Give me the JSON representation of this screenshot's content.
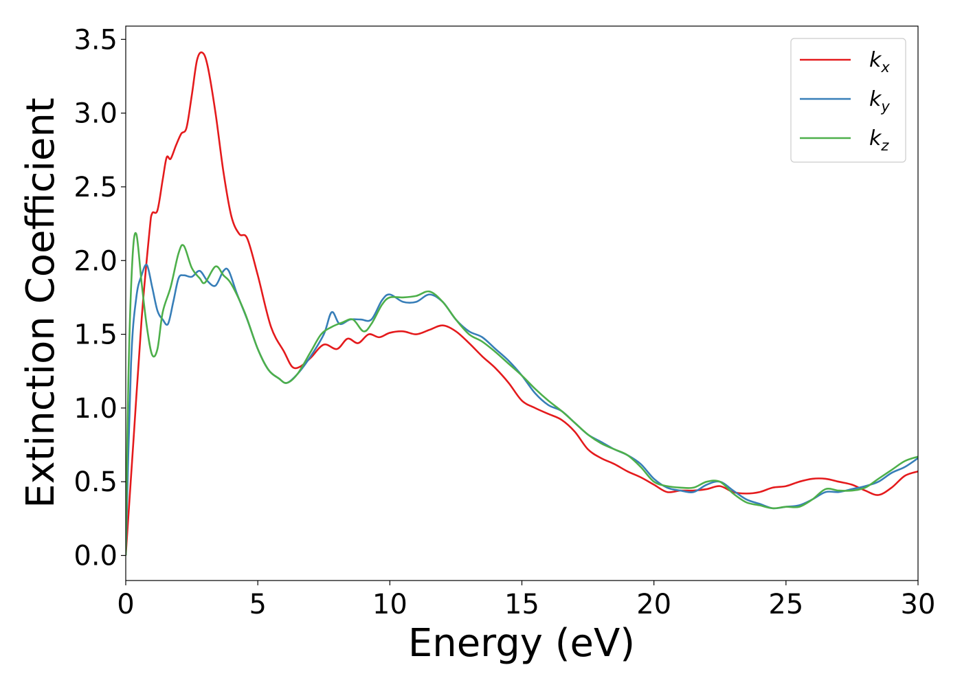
{
  "chart_data": {
    "type": "line",
    "title": "",
    "xlabel": "Energy (eV)",
    "ylabel": "Extinction Coefficient",
    "xlim": [
      0,
      30
    ],
    "ylim": [
      -0.17,
      3.59
    ],
    "xticks": [
      0,
      5,
      10,
      15,
      20,
      25,
      30
    ],
    "xtick_labels": [
      "0",
      "5",
      "10",
      "15",
      "20",
      "25",
      "30"
    ],
    "yticks": [
      0.0,
      0.5,
      1.0,
      1.5,
      2.0,
      2.5,
      3.0,
      3.5
    ],
    "ytick_labels": [
      "0.0",
      "0.5",
      "1.0",
      "1.5",
      "2.0",
      "2.5",
      "3.0",
      "3.5"
    ],
    "grid": false,
    "legend_position": "top-right",
    "series": [
      {
        "name": "k",
        "subscript": "x",
        "color": "#e41a1c",
        "points": [
          [
            0,
            0
          ],
          [
            0.3,
            0.8
          ],
          [
            0.6,
            1.6
          ],
          [
            0.9,
            2.2
          ],
          [
            1.0,
            2.32
          ],
          [
            1.2,
            2.34
          ],
          [
            1.4,
            2.55
          ],
          [
            1.55,
            2.7
          ],
          [
            1.7,
            2.69
          ],
          [
            1.9,
            2.78
          ],
          [
            2.1,
            2.86
          ],
          [
            2.3,
            2.9
          ],
          [
            2.5,
            3.12
          ],
          [
            2.7,
            3.36
          ],
          [
            2.9,
            3.41
          ],
          [
            3.1,
            3.32
          ],
          [
            3.4,
            3.0
          ],
          [
            3.7,
            2.6
          ],
          [
            4.0,
            2.3
          ],
          [
            4.3,
            2.18
          ],
          [
            4.6,
            2.15
          ],
          [
            5.0,
            1.9
          ],
          [
            5.5,
            1.55
          ],
          [
            6.0,
            1.38
          ],
          [
            6.3,
            1.28
          ],
          [
            6.6,
            1.28
          ],
          [
            7.0,
            1.34
          ],
          [
            7.5,
            1.43
          ],
          [
            8.0,
            1.4
          ],
          [
            8.4,
            1.47
          ],
          [
            8.8,
            1.44
          ],
          [
            9.2,
            1.5
          ],
          [
            9.6,
            1.48
          ],
          [
            10.0,
            1.51
          ],
          [
            10.5,
            1.52
          ],
          [
            11.0,
            1.5
          ],
          [
            11.5,
            1.53
          ],
          [
            12.0,
            1.56
          ],
          [
            12.5,
            1.52
          ],
          [
            13.0,
            1.44
          ],
          [
            13.5,
            1.35
          ],
          [
            14.0,
            1.27
          ],
          [
            14.5,
            1.17
          ],
          [
            15.0,
            1.05
          ],
          [
            15.5,
            1.0
          ],
          [
            16.0,
            0.96
          ],
          [
            16.5,
            0.92
          ],
          [
            17.0,
            0.84
          ],
          [
            17.5,
            0.72
          ],
          [
            18.0,
            0.66
          ],
          [
            18.5,
            0.62
          ],
          [
            19.0,
            0.57
          ],
          [
            19.5,
            0.53
          ],
          [
            20.0,
            0.48
          ],
          [
            20.5,
            0.43
          ],
          [
            21.0,
            0.44
          ],
          [
            21.5,
            0.44
          ],
          [
            22.0,
            0.45
          ],
          [
            22.5,
            0.47
          ],
          [
            23.0,
            0.43
          ],
          [
            23.5,
            0.42
          ],
          [
            24.0,
            0.43
          ],
          [
            24.5,
            0.46
          ],
          [
            25.0,
            0.47
          ],
          [
            25.5,
            0.5
          ],
          [
            26.0,
            0.52
          ],
          [
            26.5,
            0.52
          ],
          [
            27.0,
            0.5
          ],
          [
            27.5,
            0.48
          ],
          [
            28.0,
            0.44
          ],
          [
            28.5,
            0.41
          ],
          [
            29.0,
            0.46
          ],
          [
            29.5,
            0.54
          ],
          [
            30.0,
            0.57
          ]
        ]
      },
      {
        "name": "k",
        "subscript": "y",
        "color": "#377eb8",
        "points": [
          [
            0,
            0
          ],
          [
            0.2,
            1.3
          ],
          [
            0.4,
            1.75
          ],
          [
            0.6,
            1.9
          ],
          [
            0.8,
            1.97
          ],
          [
            1.0,
            1.82
          ],
          [
            1.2,
            1.66
          ],
          [
            1.4,
            1.6
          ],
          [
            1.6,
            1.57
          ],
          [
            1.8,
            1.72
          ],
          [
            2.0,
            1.88
          ],
          [
            2.2,
            1.9
          ],
          [
            2.5,
            1.89
          ],
          [
            2.8,
            1.93
          ],
          [
            3.1,
            1.86
          ],
          [
            3.4,
            1.83
          ],
          [
            3.7,
            1.93
          ],
          [
            3.9,
            1.93
          ],
          [
            4.2,
            1.78
          ],
          [
            4.6,
            1.6
          ],
          [
            5.0,
            1.4
          ],
          [
            5.4,
            1.26
          ],
          [
            5.8,
            1.2
          ],
          [
            6.1,
            1.17
          ],
          [
            6.5,
            1.23
          ],
          [
            7.0,
            1.35
          ],
          [
            7.5,
            1.5
          ],
          [
            7.8,
            1.65
          ],
          [
            8.1,
            1.57
          ],
          [
            8.5,
            1.6
          ],
          [
            8.9,
            1.6
          ],
          [
            9.3,
            1.6
          ],
          [
            9.7,
            1.73
          ],
          [
            10.0,
            1.77
          ],
          [
            10.5,
            1.72
          ],
          [
            11.0,
            1.72
          ],
          [
            11.5,
            1.77
          ],
          [
            12.0,
            1.72
          ],
          [
            12.5,
            1.6
          ],
          [
            13.0,
            1.52
          ],
          [
            13.5,
            1.48
          ],
          [
            14.0,
            1.4
          ],
          [
            14.5,
            1.32
          ],
          [
            15.0,
            1.22
          ],
          [
            15.5,
            1.1
          ],
          [
            16.0,
            1.02
          ],
          [
            16.5,
            0.98
          ],
          [
            17.0,
            0.9
          ],
          [
            17.5,
            0.82
          ],
          [
            18.0,
            0.77
          ],
          [
            18.5,
            0.72
          ],
          [
            19.0,
            0.68
          ],
          [
            19.5,
            0.62
          ],
          [
            20.0,
            0.52
          ],
          [
            20.5,
            0.46
          ],
          [
            21.0,
            0.44
          ],
          [
            21.5,
            0.43
          ],
          [
            22.0,
            0.48
          ],
          [
            22.5,
            0.5
          ],
          [
            23.0,
            0.44
          ],
          [
            23.5,
            0.38
          ],
          [
            24.0,
            0.35
          ],
          [
            24.5,
            0.32
          ],
          [
            25.0,
            0.33
          ],
          [
            25.5,
            0.34
          ],
          [
            26.0,
            0.38
          ],
          [
            26.5,
            0.43
          ],
          [
            27.0,
            0.43
          ],
          [
            27.5,
            0.45
          ],
          [
            28.0,
            0.47
          ],
          [
            28.5,
            0.5
          ],
          [
            29.0,
            0.56
          ],
          [
            29.5,
            0.6
          ],
          [
            30.0,
            0.66
          ]
        ]
      },
      {
        "name": "k",
        "subscript": "z",
        "color": "#4daf4a",
        "points": [
          [
            0,
            0
          ],
          [
            0.1,
            1.2
          ],
          [
            0.25,
            2.0
          ],
          [
            0.4,
            2.18
          ],
          [
            0.6,
            1.85
          ],
          [
            0.8,
            1.55
          ],
          [
            1.0,
            1.36
          ],
          [
            1.2,
            1.4
          ],
          [
            1.4,
            1.65
          ],
          [
            1.7,
            1.82
          ],
          [
            2.0,
            2.05
          ],
          [
            2.2,
            2.1
          ],
          [
            2.5,
            1.95
          ],
          [
            2.8,
            1.88
          ],
          [
            3.0,
            1.85
          ],
          [
            3.4,
            1.96
          ],
          [
            3.7,
            1.9
          ],
          [
            4.0,
            1.84
          ],
          [
            4.5,
            1.65
          ],
          [
            5.0,
            1.4
          ],
          [
            5.4,
            1.26
          ],
          [
            5.8,
            1.2
          ],
          [
            6.1,
            1.17
          ],
          [
            6.5,
            1.23
          ],
          [
            7.0,
            1.38
          ],
          [
            7.4,
            1.5
          ],
          [
            7.8,
            1.55
          ],
          [
            8.2,
            1.58
          ],
          [
            8.6,
            1.6
          ],
          [
            9.0,
            1.52
          ],
          [
            9.3,
            1.57
          ],
          [
            9.7,
            1.7
          ],
          [
            10.0,
            1.75
          ],
          [
            10.5,
            1.75
          ],
          [
            11.0,
            1.76
          ],
          [
            11.5,
            1.79
          ],
          [
            12.0,
            1.72
          ],
          [
            12.5,
            1.6
          ],
          [
            13.0,
            1.5
          ],
          [
            13.5,
            1.45
          ],
          [
            14.0,
            1.38
          ],
          [
            14.5,
            1.3
          ],
          [
            15.0,
            1.22
          ],
          [
            15.5,
            1.13
          ],
          [
            16.0,
            1.05
          ],
          [
            16.5,
            0.98
          ],
          [
            17.0,
            0.9
          ],
          [
            17.5,
            0.82
          ],
          [
            18.0,
            0.76
          ],
          [
            18.5,
            0.72
          ],
          [
            19.0,
            0.68
          ],
          [
            19.5,
            0.6
          ],
          [
            20.0,
            0.5
          ],
          [
            20.5,
            0.47
          ],
          [
            21.0,
            0.46
          ],
          [
            21.5,
            0.46
          ],
          [
            22.0,
            0.5
          ],
          [
            22.5,
            0.5
          ],
          [
            23.0,
            0.42
          ],
          [
            23.5,
            0.36
          ],
          [
            24.0,
            0.34
          ],
          [
            24.5,
            0.32
          ],
          [
            25.0,
            0.33
          ],
          [
            25.5,
            0.33
          ],
          [
            26.0,
            0.38
          ],
          [
            26.5,
            0.45
          ],
          [
            27.0,
            0.44
          ],
          [
            27.5,
            0.44
          ],
          [
            28.0,
            0.46
          ],
          [
            28.5,
            0.52
          ],
          [
            29.0,
            0.58
          ],
          [
            29.5,
            0.64
          ],
          [
            30.0,
            0.67
          ]
        ]
      }
    ]
  }
}
